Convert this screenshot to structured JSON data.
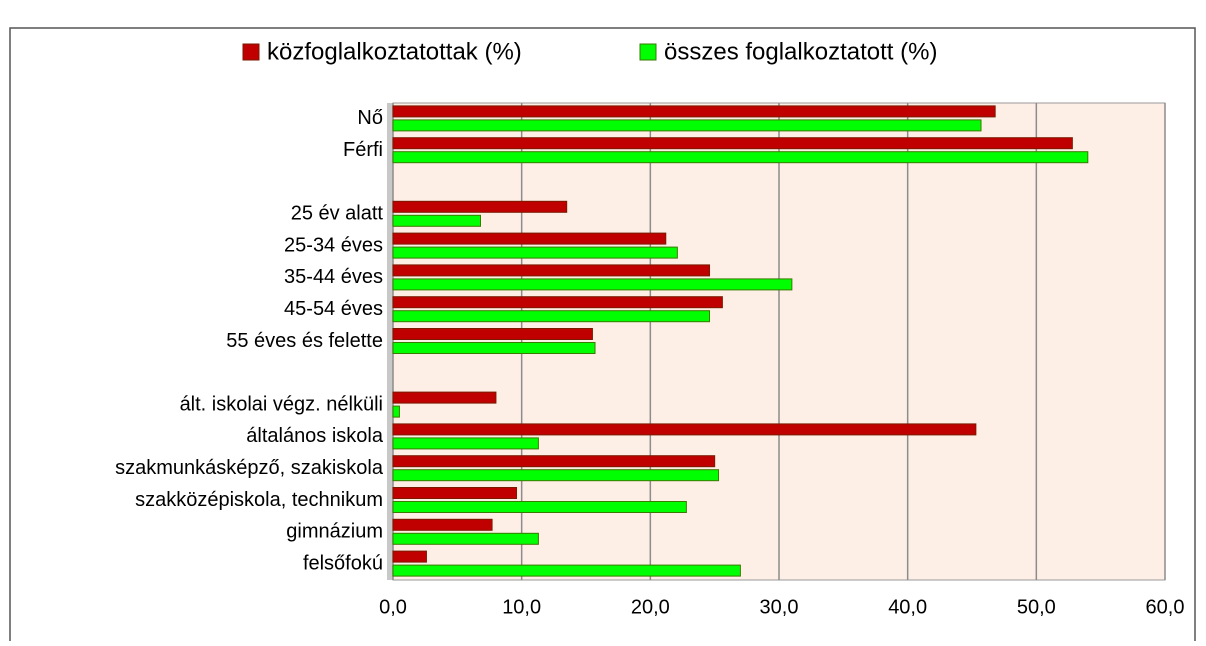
{
  "chart_data": {
    "type": "bar",
    "orientation": "horizontal",
    "categories": [
      "Nő",
      "Férfi",
      null,
      "25 év alatt",
      "25-34 éves",
      "35-44 éves",
      "45-54 éves",
      "55 éves és felette",
      null,
      "ált. iskolai végz. nélküli",
      "általános iskola",
      "szakmunkásképző, szakiskola",
      "szakközépiskola, technikum",
      "gimnázium",
      "felsőfokú"
    ],
    "series": [
      {
        "name": "közfoglalkoztatottak (%)",
        "color": "#c00000",
        "values": [
          46.8,
          52.8,
          null,
          13.5,
          21.2,
          24.6,
          25.6,
          15.5,
          null,
          8.0,
          45.3,
          25.0,
          9.6,
          7.7,
          2.6
        ]
      },
      {
        "name": "összes foglalkoztatott (%)",
        "color": "#00ff00",
        "values": [
          45.7,
          54.0,
          null,
          6.8,
          22.1,
          31.0,
          24.6,
          15.7,
          null,
          0.5,
          11.3,
          25.3,
          22.8,
          11.3,
          27.0
        ]
      }
    ],
    "xlim": [
      0,
      60
    ],
    "xticks": [
      {
        "value": 0,
        "label": "0,0"
      },
      {
        "value": 10,
        "label": "10,0"
      },
      {
        "value": 20,
        "label": "20,0"
      },
      {
        "value": 30,
        "label": "30,0"
      },
      {
        "value": 40,
        "label": "40,0"
      },
      {
        "value": 50,
        "label": "50,0"
      },
      {
        "value": 60,
        "label": "60,0"
      }
    ],
    "grid": true,
    "legend": "top"
  }
}
